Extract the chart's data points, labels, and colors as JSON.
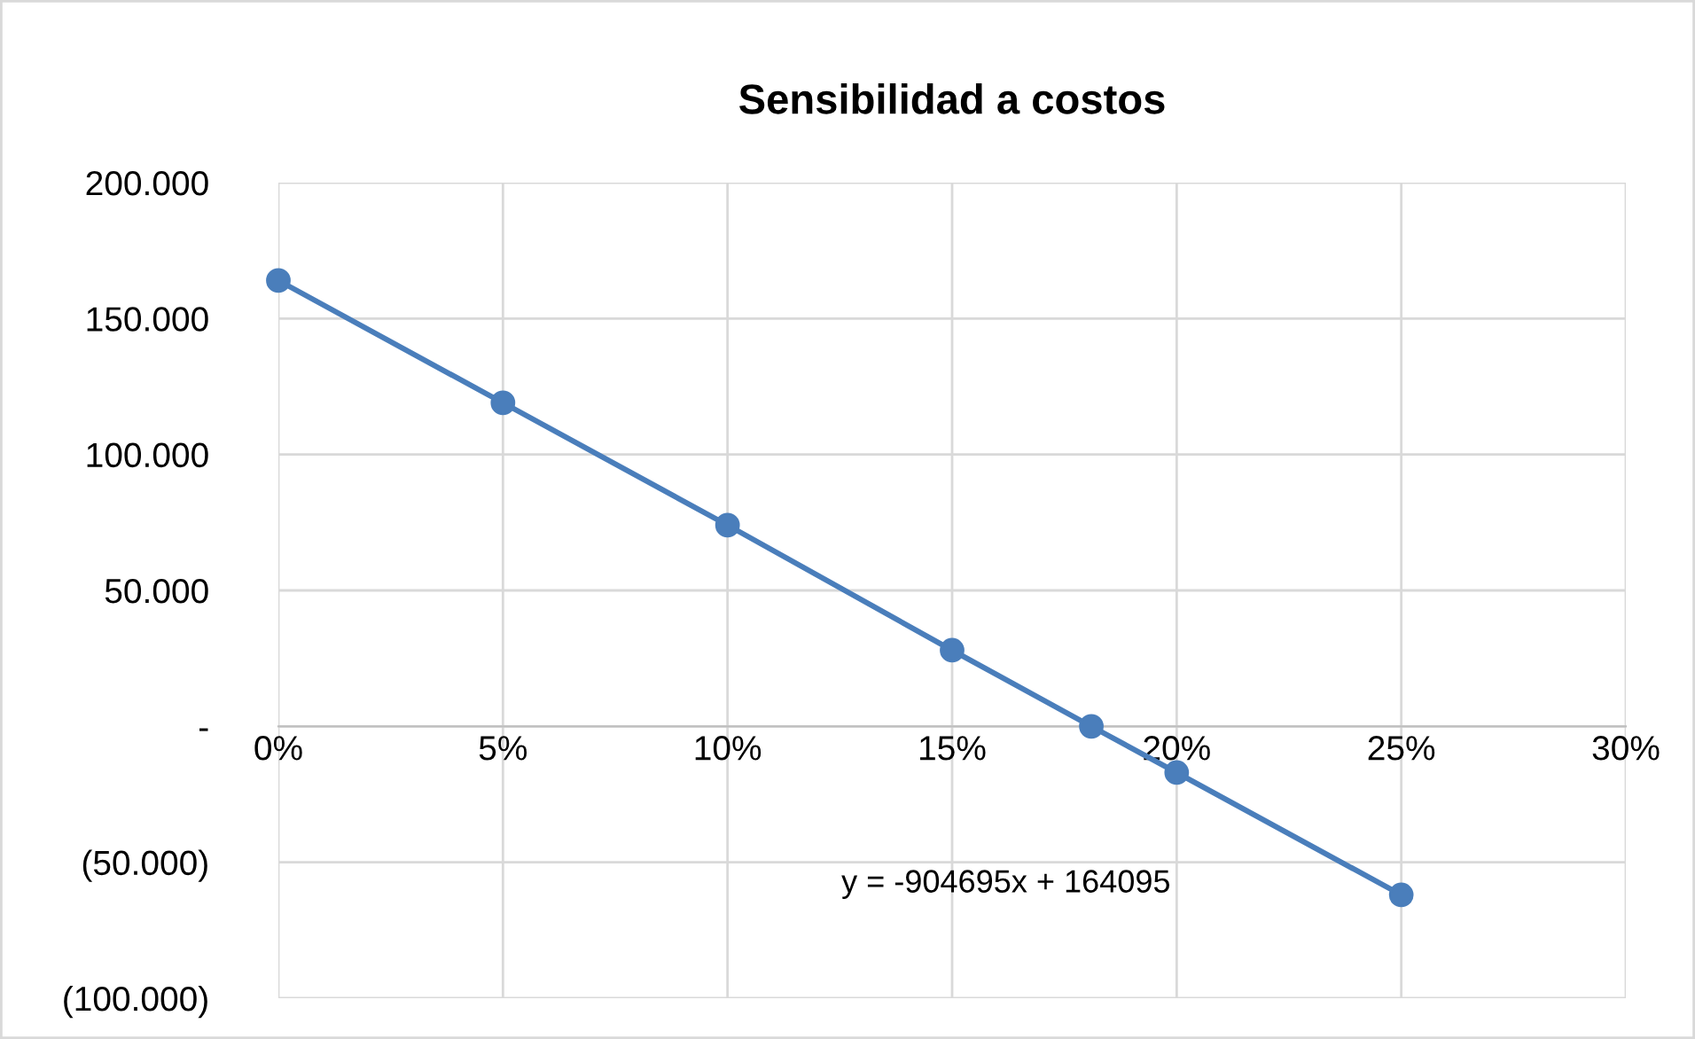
{
  "chart_data": {
    "type": "line",
    "title": "Sensibilidad a costos",
    "x": [
      0,
      0.05,
      0.1,
      0.15,
      0.181,
      0.2,
      0.25
    ],
    "series": [
      {
        "color": "#4a7ebb",
        "values": [
          164000,
          119000,
          74000,
          28000,
          0,
          -17000,
          -62000
        ]
      }
    ],
    "xlim": [
      0,
      0.3
    ],
    "xticks": [
      {
        "value": 0,
        "label": "0%"
      },
      {
        "value": 0.05,
        "label": "5%"
      },
      {
        "value": 0.1,
        "label": "10%"
      },
      {
        "value": 0.15,
        "label": "15%"
      },
      {
        "value": 0.2,
        "label": "20%"
      },
      {
        "value": 0.25,
        "label": "25%"
      },
      {
        "value": 0.3,
        "label": "30%"
      }
    ],
    "ylim": [
      -100000,
      200000
    ],
    "yticks": [
      {
        "value": -100000,
        "label": "(100.000)"
      },
      {
        "value": -50000,
        "label": "(50.000)"
      },
      {
        "value": 0,
        "label": "-"
      },
      {
        "value": 50000,
        "label": "50.000"
      },
      {
        "value": 100000,
        "label": "100.000"
      },
      {
        "value": 150000,
        "label": "150.000"
      },
      {
        "value": 200000,
        "label": "200.000"
      }
    ],
    "grid": true,
    "marker": "circle",
    "line_style": "solid",
    "annotations": [
      "y = -904695x + 164095"
    ]
  }
}
